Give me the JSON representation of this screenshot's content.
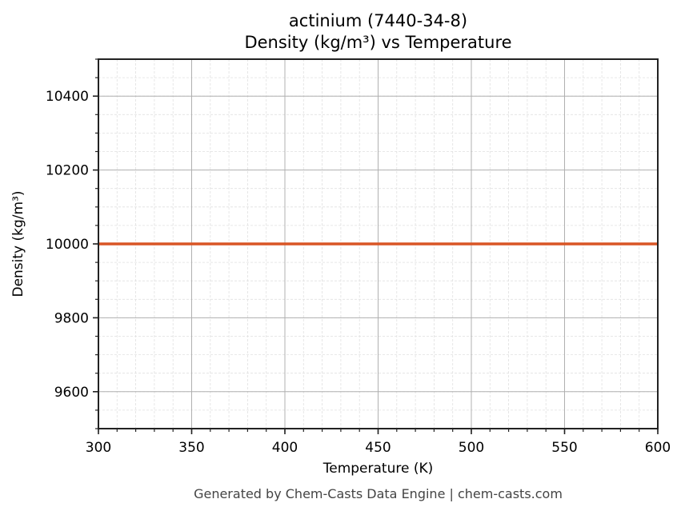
{
  "title": {
    "line1": "actinium (7440-34-8)",
    "line2": "Density (kg/m³) vs Temperature"
  },
  "footer": "Generated by Chem-Casts Data Engine | chem-casts.com",
  "colors": {
    "series": "#d95525",
    "major_grid": "#b0b0b0",
    "minor_grid": "#e0e0e0",
    "axes": "#222222",
    "footer_text": "#444444"
  },
  "chart_data": {
    "type": "line",
    "title": "actinium (7440-34-8)\nDensity (kg/m³) vs Temperature",
    "xlabel": "Temperature (K)",
    "ylabel": "Density (kg/m³)",
    "xlim": [
      300,
      600
    ],
    "ylim": [
      9500,
      10500
    ],
    "xticks": [
      300,
      350,
      400,
      450,
      500,
      550,
      600
    ],
    "yticks": [
      9600,
      9800,
      10000,
      10200,
      10400
    ],
    "xtick_labels": [
      "300",
      "350",
      "400",
      "450",
      "500",
      "550",
      "600"
    ],
    "ytick_labels": [
      "9600",
      "9800",
      "10000",
      "10200",
      "10400"
    ],
    "grid": {
      "major": true,
      "minor": true
    },
    "legend": null,
    "series": [
      {
        "name": "Density",
        "x": [
          300,
          350,
          400,
          450,
          500,
          550,
          600
        ],
        "values": [
          10000,
          10000,
          10000,
          10000,
          10000,
          10000,
          10000
        ]
      }
    ]
  }
}
